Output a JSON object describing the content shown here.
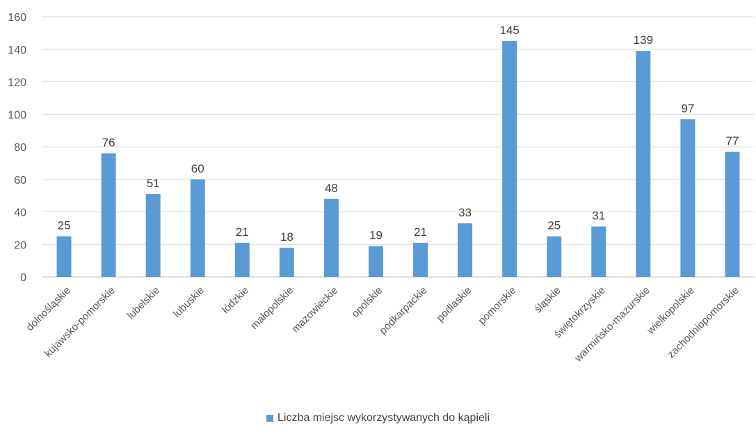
{
  "chart_data": {
    "type": "bar",
    "categories": [
      "dolnośląskie",
      "kujawsko-pomorskie",
      "lubelskie",
      "lubuskie",
      "łódzkie",
      "małopolskie",
      "mazowieckie",
      "opolskie",
      "podkarpackie",
      "podlaskie",
      "pomorskie",
      "śląskie",
      "świętokrzyskie",
      "warmińsko-mazurskie",
      "wielkopolskie",
      "zachodniopomorskie"
    ],
    "series": [
      {
        "name": "Liczba miejsc wykorzystywanych do kąpieli",
        "values": [
          25,
          76,
          51,
          60,
          21,
          18,
          48,
          19,
          21,
          33,
          145,
          25,
          31,
          139,
          97,
          77
        ],
        "color": "#5b9bd5"
      }
    ],
    "ylim": [
      0,
      160
    ],
    "yticks": [
      0,
      20,
      40,
      60,
      80,
      100,
      120,
      140,
      160
    ],
    "grid": true,
    "legend_position": "bottom",
    "data_labels": true,
    "title": "",
    "xlabel": "",
    "ylabel": ""
  }
}
